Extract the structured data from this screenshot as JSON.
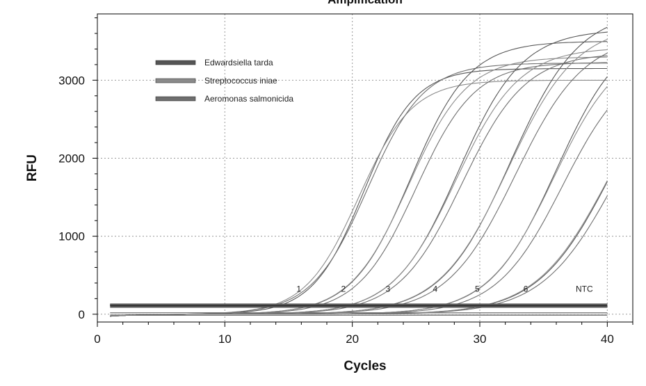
{
  "chart_data": {
    "type": "line",
    "title": "Amplification",
    "xlabel": "Cycles",
    "ylabel": "RFU",
    "xlim": [
      0,
      42
    ],
    "ylim": [
      -100,
      3850
    ],
    "xticks": [
      0,
      10,
      20,
      30,
      40
    ],
    "yticks": [
      0,
      1000,
      2000,
      3000
    ],
    "grid": true,
    "legend_position": "top-left",
    "threshold": 110,
    "series": [
      {
        "name": "Edwardsiella tarda",
        "color": "#555555"
      },
      {
        "name": "Streptococcus iniae",
        "color": "#8a8a8a"
      },
      {
        "name": "Aeromonas salmonicida",
        "color": "#6e6e6e"
      }
    ],
    "dilutions": [
      {
        "label": "1",
        "label_x": 15.8,
        "curves": [
          {
            "series": 0,
            "plateau": 3150,
            "midpoint": 20.9,
            "slope": 2.0
          },
          {
            "series": 1,
            "plateau": 3000,
            "midpoint": 20.5,
            "slope": 2.1
          },
          {
            "series": 2,
            "plateau": 3220,
            "midpoint": 21.2,
            "slope": 2.2
          }
        ]
      },
      {
        "label": "2",
        "label_x": 19.3,
        "curves": [
          {
            "series": 0,
            "plateau": 3500,
            "midpoint": 24.6,
            "slope": 2.3
          },
          {
            "series": 1,
            "plateau": 3300,
            "midpoint": 24.4,
            "slope": 2.3
          },
          {
            "series": 2,
            "plateau": 3230,
            "midpoint": 25.0,
            "slope": 2.3
          }
        ]
      },
      {
        "label": "3",
        "label_x": 22.8,
        "curves": [
          {
            "series": 0,
            "plateau": 3650,
            "midpoint": 28.3,
            "slope": 2.5
          },
          {
            "series": 1,
            "plateau": 3420,
            "midpoint": 28.1,
            "slope": 2.5
          },
          {
            "series": 2,
            "plateau": 3350,
            "midpoint": 28.6,
            "slope": 2.5
          }
        ]
      },
      {
        "label": "4",
        "label_x": 26.5,
        "curves": [
          {
            "series": 0,
            "plateau": 3900,
            "midpoint": 32.4,
            "slope": 2.7
          },
          {
            "series": 1,
            "plateau": 3720,
            "midpoint": 32.2,
            "slope": 2.7
          },
          {
            "series": 2,
            "plateau": 3580,
            "midpoint": 32.8,
            "slope": 2.7
          }
        ]
      },
      {
        "label": "5",
        "label_x": 29.8,
        "curves": [
          {
            "series": 0,
            "plateau": 3700,
            "midpoint": 36.0,
            "slope": 2.6
          },
          {
            "series": 1,
            "plateau": 3500,
            "midpoint": 35.8,
            "slope": 2.6
          },
          {
            "series": 2,
            "plateau": 3300,
            "midpoint": 36.5,
            "slope": 2.6
          }
        ]
      },
      {
        "label": "6",
        "label_x": 33.6,
        "curves": [
          {
            "series": 0,
            "plateau": 3650,
            "midpoint": 40.4,
            "slope": 2.9
          },
          {
            "series": 1,
            "plateau": 3550,
            "midpoint": 40.2,
            "slope": 2.9
          },
          {
            "series": 2,
            "plateau": 3450,
            "midpoint": 40.7,
            "slope": 2.9
          }
        ]
      },
      {
        "label": "NTC",
        "label_x": 38.2,
        "curves": [
          {
            "series": 0,
            "flat": 120
          },
          {
            "series": 1,
            "flat": 115
          },
          {
            "series": 2,
            "flat": 125
          }
        ]
      }
    ]
  }
}
